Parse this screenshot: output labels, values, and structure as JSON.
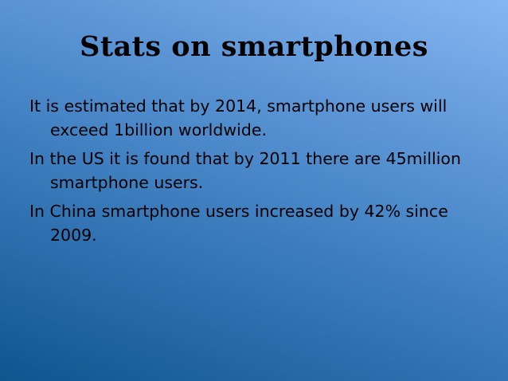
{
  "slide": {
    "title": "Stats on smartphones",
    "bullets": [
      "It is estimated that by 2014, smartphone users will exceed 1billion worldwide.",
      "In the US it is found that by 2011 there are 45million smartphone users.",
      "In China smartphone users increased by 42% since 2009."
    ]
  },
  "colors": {
    "background_light": "#86b6f2",
    "background_dark": "#0d5690",
    "text": "#000000"
  }
}
